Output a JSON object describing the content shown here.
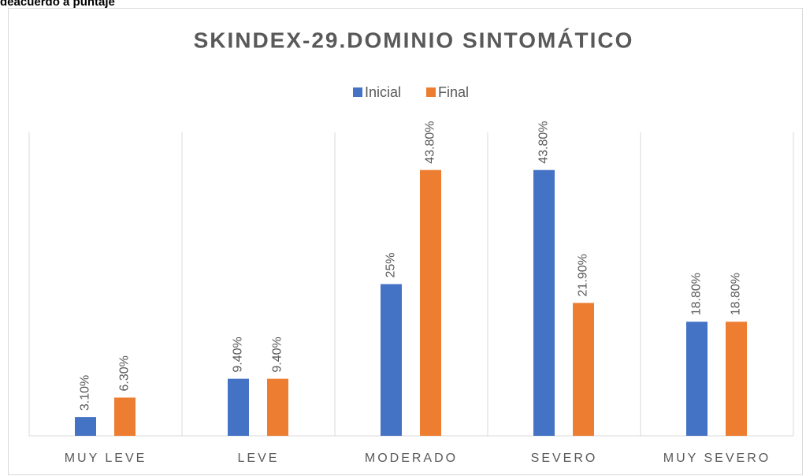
{
  "heading": "deacuerdo a puntaje",
  "chart_data": {
    "type": "bar",
    "title": "SKINDEX-29.DOMINIO SINTOMÁTICO",
    "categories": [
      "MUY LEVE",
      "LEVE",
      "MODERADO",
      "SEVERO",
      "MUY SEVERO"
    ],
    "series": [
      {
        "name": "Inicial",
        "color": "#4472c4",
        "values": [
          3.1,
          9.4,
          25,
          43.8,
          18.8
        ],
        "value_labels": [
          "3.10%",
          "9.40%",
          "25%",
          "43.80%",
          "18.80%"
        ]
      },
      {
        "name": "Final",
        "color": "#ed7d31",
        "values": [
          6.3,
          9.4,
          43.8,
          21.9,
          18.8
        ],
        "value_labels": [
          "6.30%",
          "9.40%",
          "43.80%",
          "21.90%",
          "18.80%"
        ]
      }
    ],
    "ylim": [
      0,
      50
    ],
    "legend": "top"
  }
}
